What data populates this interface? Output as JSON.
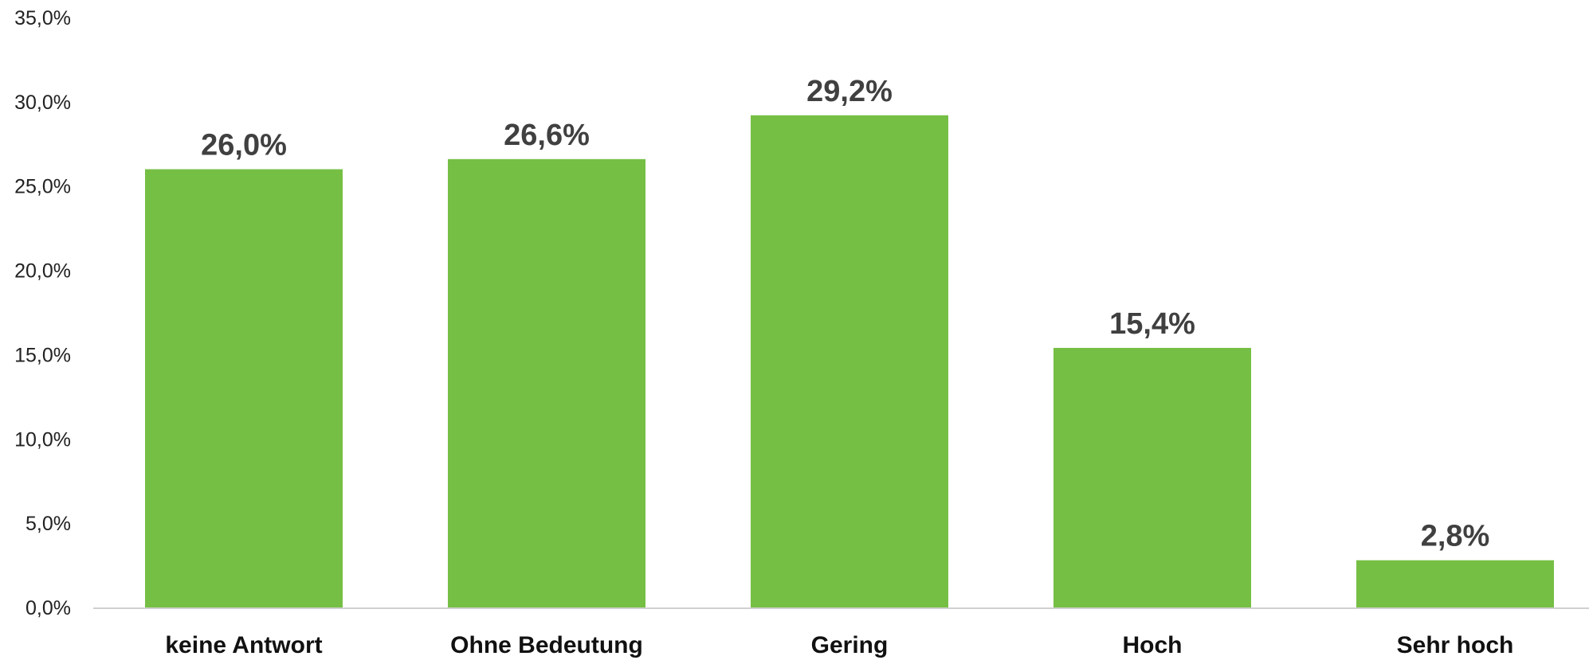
{
  "chart_data": {
    "type": "bar",
    "categories": [
      "keine Antwort",
      "Ohne Bedeutung",
      "Gering",
      "Hoch",
      "Sehr hoch"
    ],
    "values": [
      26.0,
      26.6,
      29.2,
      15.4,
      2.8
    ],
    "value_labels": [
      "26,0%",
      "26,6%",
      "29,2%",
      "15,4%",
      "2,8%"
    ],
    "ylim": [
      0,
      35
    ],
    "y_ticks": [
      0,
      5,
      10,
      15,
      20,
      25,
      30,
      35
    ],
    "y_tick_labels": [
      "0,0%",
      "5,0%",
      "10,0%",
      "15,0%",
      "20,0%",
      "25,0%",
      "30,0%",
      "35,0%"
    ],
    "title": "",
    "xlabel": "",
    "ylabel": "",
    "grid": false,
    "legend": "none",
    "colors": {
      "bar": "#76bf45",
      "axis": "#d0d0d0",
      "data_label": "#404040",
      "tick_label": "#222222",
      "category_label": "#111111"
    }
  }
}
